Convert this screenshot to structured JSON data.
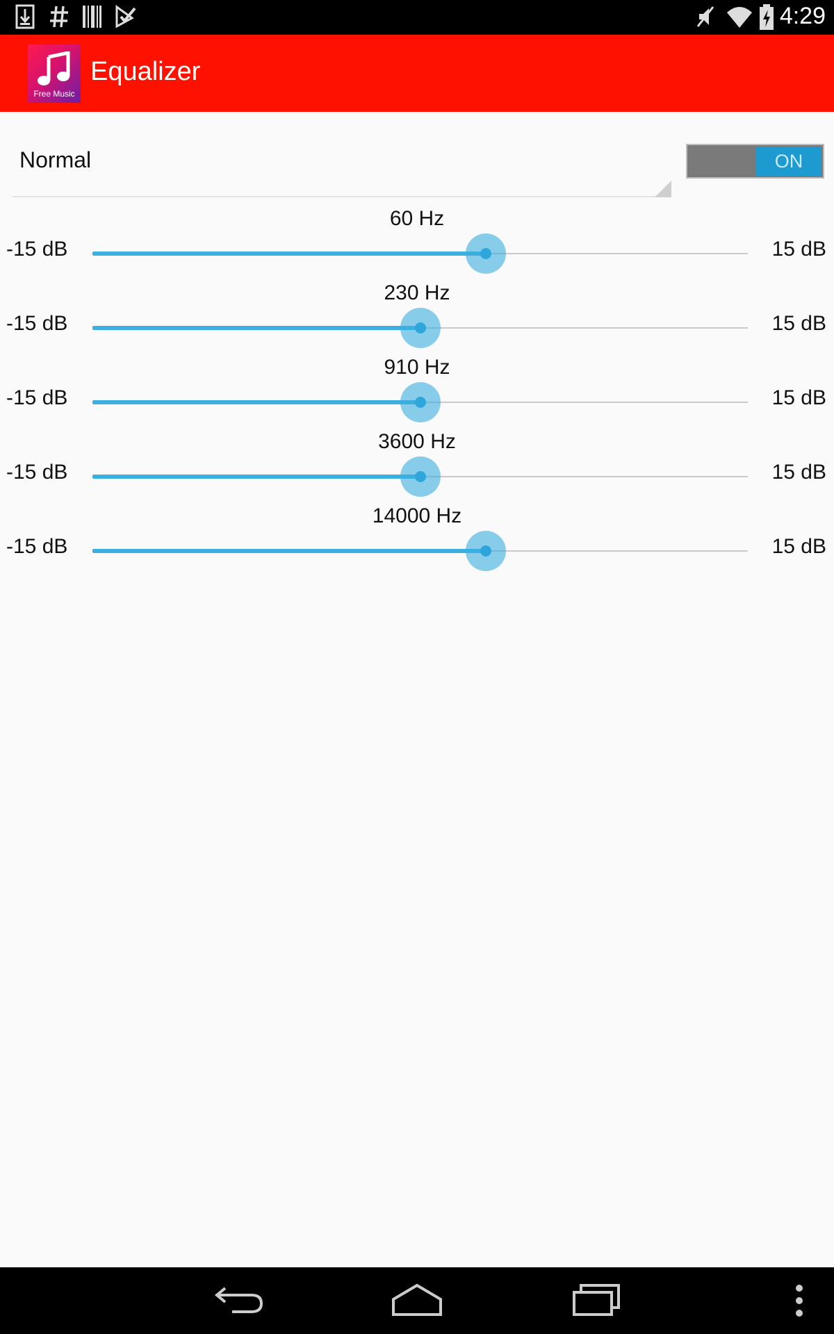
{
  "status_bar": {
    "time": "4:29",
    "left_icons": [
      "download-icon",
      "hash-icon",
      "barcode-icon",
      "checkbox-icon"
    ],
    "right_icons": [
      "mute-icon",
      "wifi-icon",
      "battery-charging-icon"
    ]
  },
  "app_bar": {
    "icon_label": "Free Music",
    "title": "Equalizer",
    "brand_color": "#ff1100"
  },
  "preset": {
    "selected": "Normal"
  },
  "toggle": {
    "label": "ON",
    "state": "on"
  },
  "bands": [
    {
      "freq": "60 Hz",
      "min": "-15 dB",
      "max": "15 dB",
      "level": 0.6
    },
    {
      "freq": "230 Hz",
      "min": "-15 dB",
      "max": "15 dB",
      "level": 0.5
    },
    {
      "freq": "910 Hz",
      "min": "-15 dB",
      "max": "15 dB",
      "level": 0.5
    },
    {
      "freq": "3600 Hz",
      "min": "-15 dB",
      "max": "15 dB",
      "level": 0.5
    },
    {
      "freq": "14000 Hz",
      "min": "-15 dB",
      "max": "15 dB",
      "level": 0.6
    }
  ],
  "nav_bar": {
    "icons": [
      "back-icon",
      "home-icon",
      "recents-icon",
      "overflow-menu-icon"
    ]
  }
}
